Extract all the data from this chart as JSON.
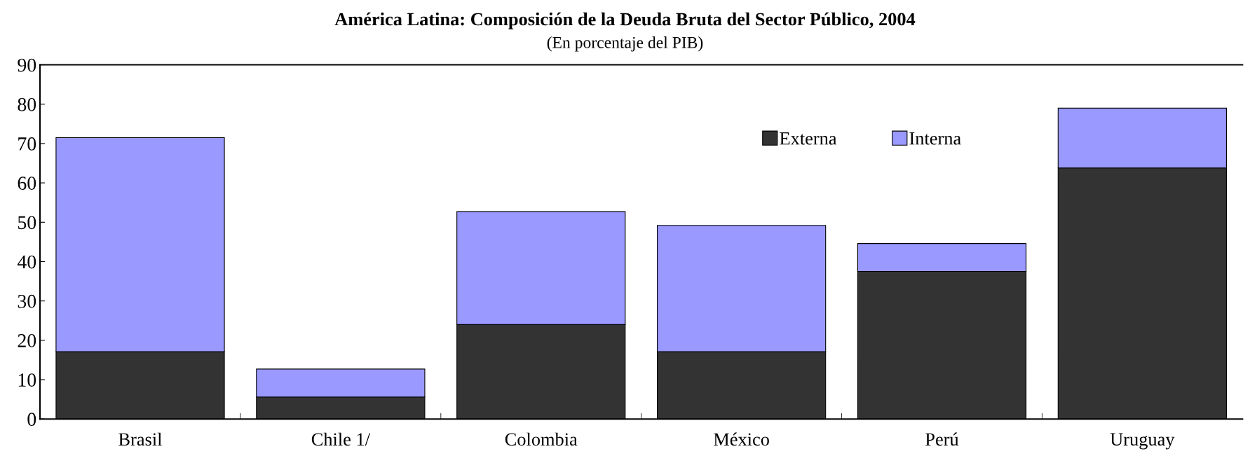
{
  "chart_data": {
    "type": "bar",
    "stacked": true,
    "title": "América Latina: Composición de la Deuda Bruta del Sector Público, 2004",
    "subtitle": "(En porcentaje del PIB)",
    "categories": [
      "Brasil",
      "Chile 1/",
      "Colombia",
      "México",
      "Perú",
      "Uruguay"
    ],
    "series": [
      {
        "name": "Externa",
        "color": "#333333",
        "values": [
          17.1,
          5.6,
          24.0,
          17.1,
          37.5,
          63.8
        ]
      },
      {
        "name": "Interna",
        "color": "#9999ff",
        "values": [
          54.4,
          7.1,
          28.7,
          32.1,
          7.1,
          15.2
        ]
      }
    ],
    "ylim": [
      0,
      90
    ],
    "yticks": [
      0,
      10,
      20,
      30,
      40,
      50,
      60,
      70,
      80,
      90
    ],
    "legend": "top right"
  }
}
